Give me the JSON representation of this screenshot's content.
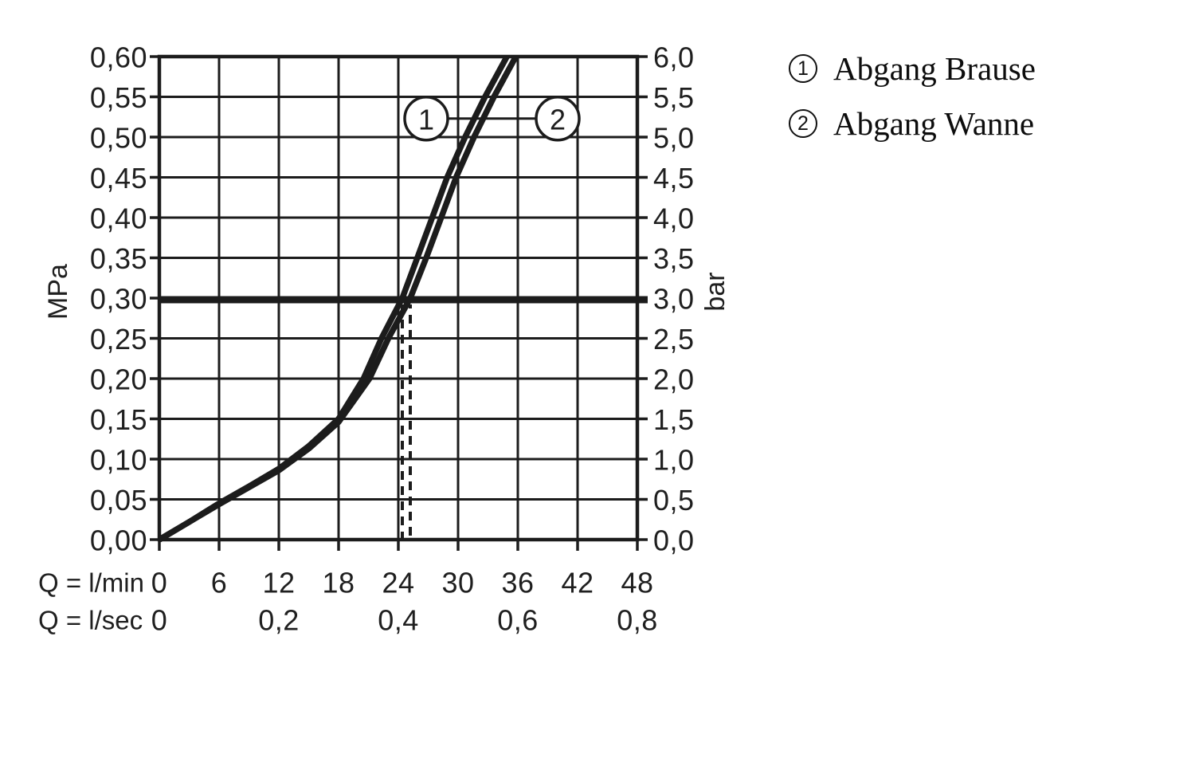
{
  "page": {
    "background": "#ffffff",
    "ink_color": "#1c1c1c"
  },
  "legend": {
    "items": [
      {
        "marker": "1",
        "label": "Abgang Brause"
      },
      {
        "marker": "2",
        "label": "Abgang Wanne"
      }
    ]
  },
  "chart_data": {
    "type": "line",
    "title": "",
    "grid": true,
    "x_axis": {
      "range_lmin": [
        0,
        48
      ],
      "grid_step_lmin": 6,
      "rows": [
        {
          "prefix": "Q = l/min",
          "ticks": [
            {
              "label": "0",
              "q": 0
            },
            {
              "label": "6",
              "q": 6
            },
            {
              "label": "12",
              "q": 12
            },
            {
              "label": "18",
              "q": 18
            },
            {
              "label": "24",
              "q": 24
            },
            {
              "label": "30",
              "q": 30
            },
            {
              "label": "36",
              "q": 36
            },
            {
              "label": "42",
              "q": 42
            },
            {
              "label": "48",
              "q": 48
            }
          ]
        },
        {
          "prefix": "Q = l/sec",
          "ticks": [
            {
              "label": "0",
              "q": 0
            },
            {
              "label": "0,2",
              "q": 12
            },
            {
              "label": "0,4",
              "q": 24
            },
            {
              "label": "0,6",
              "q": 36
            },
            {
              "label": "0,8",
              "q": 48
            }
          ]
        }
      ]
    },
    "y_axis_left": {
      "unit": "MPa",
      "range": [
        0,
        0.6
      ],
      "step": 0.05,
      "ticks": [
        {
          "label": "0,60",
          "mpa": 0.6
        },
        {
          "label": "0,55",
          "mpa": 0.55
        },
        {
          "label": "0,50",
          "mpa": 0.5
        },
        {
          "label": "0,45",
          "mpa": 0.45
        },
        {
          "label": "0,40",
          "mpa": 0.4
        },
        {
          "label": "0,35",
          "mpa": 0.35
        },
        {
          "label": "0,30",
          "mpa": 0.3
        },
        {
          "label": "0,25",
          "mpa": 0.25
        },
        {
          "label": "0,20",
          "mpa": 0.2
        },
        {
          "label": "0,15",
          "mpa": 0.15
        },
        {
          "label": "0,10",
          "mpa": 0.1
        },
        {
          "label": "0,05",
          "mpa": 0.05
        },
        {
          "label": "0,00",
          "mpa": 0.0
        }
      ]
    },
    "y_axis_right": {
      "unit": "bar",
      "range": [
        0,
        6
      ],
      "step": 0.5,
      "ticks": [
        {
          "label": "6,0",
          "bar": 6.0
        },
        {
          "label": "5,5",
          "bar": 5.5
        },
        {
          "label": "5,0",
          "bar": 5.0
        },
        {
          "label": "4,5",
          "bar": 4.5
        },
        {
          "label": "4,0",
          "bar": 4.0
        },
        {
          "label": "3,5",
          "bar": 3.5
        },
        {
          "label": "3,0",
          "bar": 3.0
        },
        {
          "label": "2,5",
          "bar": 2.5
        },
        {
          "label": "2,0",
          "bar": 2.0
        },
        {
          "label": "1,5",
          "bar": 1.5
        },
        {
          "label": "1,0",
          "bar": 1.0
        },
        {
          "label": "0,5",
          "bar": 0.5
        },
        {
          "label": "0,0",
          "bar": 0.0
        }
      ]
    },
    "series": [
      {
        "name": "Abgang Brause",
        "marker": "1",
        "points_q_mpa": [
          [
            0,
            0
          ],
          [
            3,
            0.022
          ],
          [
            6,
            0.045
          ],
          [
            9,
            0.066
          ],
          [
            12,
            0.088
          ],
          [
            15,
            0.116
          ],
          [
            18,
            0.15
          ],
          [
            20.5,
            0.2
          ],
          [
            22.3,
            0.25
          ],
          [
            24.4,
            0.3
          ],
          [
            25.9,
            0.35
          ],
          [
            27.4,
            0.4
          ],
          [
            28.9,
            0.45
          ],
          [
            30.7,
            0.5
          ],
          [
            32.7,
            0.55
          ],
          [
            34.9,
            0.6
          ]
        ]
      },
      {
        "name": "Abgang Wanne",
        "marker": "2",
        "points_q_mpa": [
          [
            0,
            0
          ],
          [
            3,
            0.022
          ],
          [
            6,
            0.044
          ],
          [
            9,
            0.065
          ],
          [
            12,
            0.086
          ],
          [
            15,
            0.113
          ],
          [
            18,
            0.146
          ],
          [
            21.1,
            0.2
          ],
          [
            23.0,
            0.25
          ],
          [
            25.2,
            0.3
          ],
          [
            26.8,
            0.35
          ],
          [
            28.3,
            0.4
          ],
          [
            29.8,
            0.45
          ],
          [
            31.6,
            0.5
          ],
          [
            33.6,
            0.55
          ],
          [
            35.8,
            0.6
          ]
        ]
      }
    ],
    "annotations": {
      "pressure_line_mpa": 0.3,
      "dashed_guides_lmin": [
        24.4,
        25.2
      ],
      "callouts": [
        {
          "label": "1",
          "q": 26.8,
          "mpa": 0.523
        },
        {
          "label": "2",
          "q": 40.0,
          "mpa": 0.523
        }
      ]
    }
  }
}
